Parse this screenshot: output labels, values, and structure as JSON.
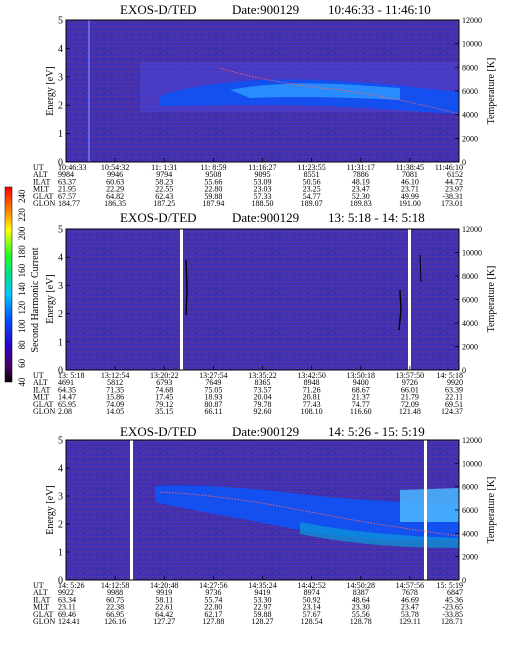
{
  "chart_data": [
    {
      "type": "heatmap",
      "title": "EXOS-D/TED",
      "date_label": "Date:900129",
      "time_range": "10:46:33 - 11:46:10",
      "ylabel": "Energy [eV]",
      "y2label": "Temperature [K]",
      "ylim": [
        0,
        5
      ],
      "y2lim": [
        0,
        12000
      ],
      "yticks": [
        "0",
        "1",
        "2",
        "3",
        "4",
        "5"
      ],
      "y2ticks": [
        "0",
        "2000",
        "4000",
        "6000",
        "8000",
        "10000",
        "12000"
      ],
      "row_labels": [
        "UT",
        "ALT",
        "ILAT",
        "MLT",
        "GLAT",
        "GLON"
      ],
      "columns": [
        [
          "10:46:33",
          "9984",
          "63.37",
          "21.95",
          "67.57",
          "184.77"
        ],
        [
          "10:54:32",
          "9946",
          "60.63",
          "22.29",
          "64.82",
          "186.35"
        ],
        [
          "11: 1:31",
          "9794",
          "58.23",
          "22.55",
          "62.43",
          "187.25"
        ],
        [
          "11: 8:59",
          "9508",
          "55.66",
          "22.80",
          "59.88",
          "187.94"
        ],
        [
          "11:16:27",
          "9095",
          "53.09",
          "23.03",
          "57.33",
          "188.50"
        ],
        [
          "11:23:55",
          "8551",
          "50.56",
          "23.25",
          "54.77",
          "189.07"
        ],
        [
          "11:31:17",
          "7886",
          "48.19",
          "23.47",
          "52.30",
          "189.83"
        ],
        [
          "11:38:45",
          "7081",
          "46.10",
          "23.71",
          "49.99",
          "191.00"
        ],
        [
          "11:46:10",
          "6152",
          "44.72",
          "23.97",
          "-38.31",
          "173.01"
        ]
      ]
    },
    {
      "type": "heatmap",
      "title": "EXOS-D/TED",
      "date_label": "Date:900129",
      "time_range": "13: 5:18 - 14: 5:18",
      "ylabel": "Energy [eV]",
      "y2label": "Temperature [K]",
      "ylim": [
        0,
        5
      ],
      "y2lim": [
        0,
        12000
      ],
      "yticks": [
        "0",
        "1",
        "2",
        "3",
        "4",
        "5"
      ],
      "y2ticks": [
        "0",
        "2000",
        "4000",
        "6000",
        "8000",
        "10000",
        "12000"
      ],
      "colorbar": {
        "label": "Second Harmonic Current",
        "ticks": [
          "40",
          "60",
          "80",
          "100",
          "120",
          "140",
          "160",
          "180",
          "200",
          "220",
          "240"
        ],
        "range": [
          40,
          250
        ]
      },
      "row_labels": [
        "UT",
        "ALT",
        "ILAT",
        "MLT",
        "GLAT",
        "GLON"
      ],
      "columns": [
        [
          "13: 5:18",
          "4691",
          "64.35",
          "14.47",
          "65.95",
          "2.08"
        ],
        [
          "13:12:54",
          "5812",
          "71.35",
          "15.86",
          "74.09",
          "14.05"
        ],
        [
          "13:20:22",
          "6793",
          "74.68",
          "17.45",
          "79.12",
          "35.15"
        ],
        [
          "13:27:54",
          "7649",
          "75.05",
          "18.93",
          "80.87",
          "66.11"
        ],
        [
          "13:35:22",
          "8365",
          "73.57",
          "20.04",
          "79.78",
          "92.60"
        ],
        [
          "13:42:50",
          "8948",
          "71.26",
          "20.81",
          "77.43",
          "108.10"
        ],
        [
          "13:50:18",
          "9400",
          "68.67",
          "21.37",
          "74.77",
          "116.60"
        ],
        [
          "13:57:50",
          "9726",
          "66.01",
          "21.79",
          "72.09",
          "121.48"
        ],
        [
          "14: 5:18",
          "9920",
          "63.39",
          "22.11",
          "69.51",
          "124.37"
        ]
      ]
    },
    {
      "type": "heatmap",
      "title": "EXOS-D/TED",
      "date_label": "Date:900129",
      "time_range": "14: 5:26 - 15: 5:19",
      "ylabel": "Energy [eV]",
      "y2label": "Temperature [K]",
      "ylim": [
        0,
        5
      ],
      "y2lim": [
        0,
        12000
      ],
      "yticks": [
        "0",
        "1",
        "2",
        "3",
        "4",
        "5"
      ],
      "y2ticks": [
        "0",
        "2000",
        "4000",
        "6000",
        "8000",
        "10000",
        "12000"
      ],
      "row_labels": [
        "UT",
        "ALT",
        "ILAT",
        "MLT",
        "GLAT",
        "GLON"
      ],
      "columns": [
        [
          "14: 5:26",
          "9922",
          "63.34",
          "23.11",
          "69.46",
          "124.41"
        ],
        [
          "14:12:58",
          "9988",
          "60.75",
          "22.38",
          "66.95",
          "126.16"
        ],
        [
          "14:20:48",
          "9919",
          "58.11",
          "22.61",
          "64.42",
          "127.27"
        ],
        [
          "14:27:56",
          "9736",
          "55.74",
          "22.80",
          "62.17",
          "127.88"
        ],
        [
          "14:35:24",
          "9419",
          "53.30",
          "22.97",
          "59.88",
          "128.27"
        ],
        [
          "14:42:52",
          "8974",
          "50.92",
          "23.14",
          "57.67",
          "128.54"
        ],
        [
          "14:50:28",
          "8387",
          "48.64",
          "23.30",
          "55.56",
          "128.78"
        ],
        [
          "14:57:56",
          "7678",
          "46.69",
          "23.47",
          "53.78",
          "129.11"
        ],
        [
          "15: 5:19",
          "6847",
          "45.36",
          "-23.65",
          "-33.85",
          "128.71"
        ]
      ]
    }
  ]
}
